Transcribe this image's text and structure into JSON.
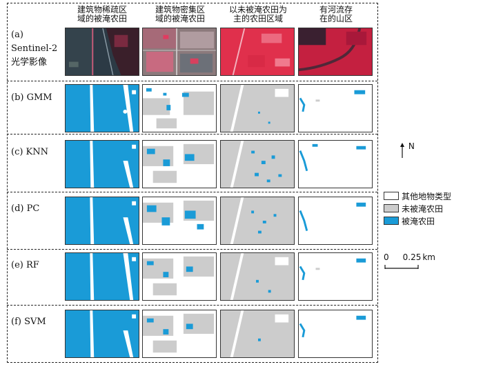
{
  "columns": [
    {
      "line1": "建筑物稀疏区",
      "line2": "域的被淹农田"
    },
    {
      "line1": "建筑物密集区",
      "line2": "域的被淹农田"
    },
    {
      "line1": "以未被淹农田为",
      "line2": "主的农田区域"
    },
    {
      "line1": "有河流存",
      "line2": "在的山区"
    }
  ],
  "rows": [
    {
      "label_line1": "(a)",
      "label_line2": "Sentinel-2",
      "label_line3": "光学影像"
    },
    {
      "label_line1": "(b) GMM"
    },
    {
      "label_line1": "(c) KNN"
    },
    {
      "label_line1": "(d) PC"
    },
    {
      "label_line1": "(e) RF"
    },
    {
      "label_line1": "(f) SVM"
    }
  ],
  "legend": [
    {
      "label": "其他地物类型",
      "color": "#ffffff"
    },
    {
      "label": "未被淹农田",
      "color": "#cccccc"
    },
    {
      "label": "被淹农田",
      "color": "#1a9bd7"
    }
  ],
  "north_label": "N",
  "scale": {
    "zero": "0",
    "value": "0.25",
    "unit": "km"
  }
}
